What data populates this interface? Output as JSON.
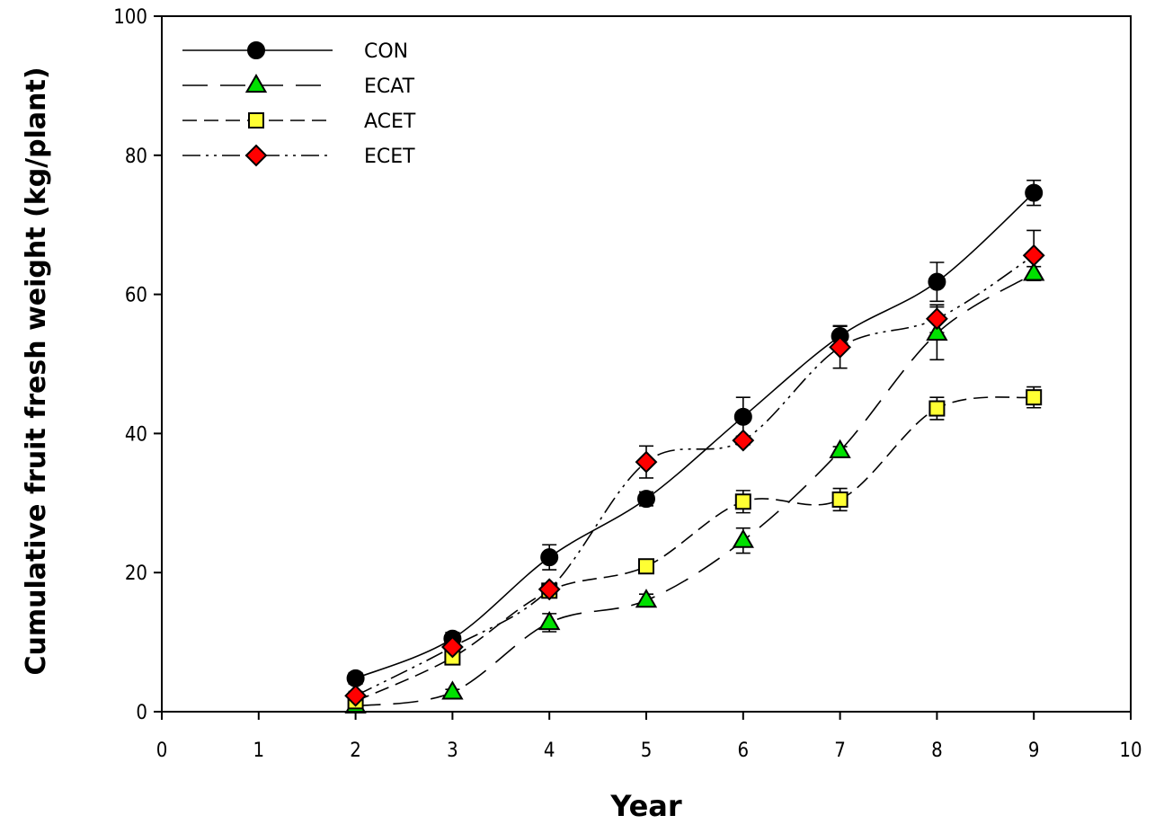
{
  "chart_data": {
    "type": "line",
    "title": "",
    "xlabel": "Year",
    "ylabel": "Cumulative fruit fresh weight (kg/plant)",
    "xlim": [
      0,
      10
    ],
    "ylim": [
      0,
      100
    ],
    "xticks": [
      0,
      1,
      2,
      3,
      4,
      5,
      6,
      7,
      8,
      9,
      10
    ],
    "yticks": [
      0,
      20,
      40,
      60,
      80,
      100
    ],
    "grid": false,
    "legend_position": "top-left",
    "x": [
      2,
      3,
      4,
      5,
      6,
      7,
      8,
      9
    ],
    "series": [
      {
        "name": "CON",
        "marker": "circle",
        "color": "#000000",
        "dash": "solid",
        "values": [
          4.8,
          10.5,
          22.2,
          30.6,
          42.4,
          54.0,
          61.8,
          74.6
        ],
        "errors": [
          0.8,
          0.9,
          1.8,
          1.0,
          2.8,
          1.5,
          2.8,
          1.8
        ]
      },
      {
        "name": "ECAT",
        "marker": "triangle",
        "color": "#00e000",
        "dash": "long-dash",
        "values": [
          0.8,
          2.8,
          12.8,
          16.0,
          24.6,
          37.5,
          54.4,
          63.0
        ],
        "errors": [
          0.3,
          0.4,
          1.3,
          0.9,
          1.8,
          0.6,
          3.8,
          1.0
        ]
      },
      {
        "name": "ACET",
        "marker": "square",
        "color": "#ffff33",
        "dash": "medium-dash",
        "values": [
          1.5,
          7.8,
          17.4,
          20.9,
          30.2,
          30.5,
          43.6,
          45.2
        ],
        "errors": [
          0.4,
          0.8,
          0.7,
          0.6,
          1.6,
          1.6,
          1.6,
          1.5
        ]
      },
      {
        "name": "ECET",
        "marker": "diamond",
        "color": "#ff0000",
        "dash": "dash-dot-dot",
        "values": [
          2.3,
          9.3,
          17.6,
          35.9,
          39.0,
          52.4,
          56.5,
          65.6
        ],
        "errors": [
          0.6,
          0.7,
          0.6,
          2.3,
          0.6,
          3.0,
          2.0,
          3.6
        ]
      }
    ]
  }
}
